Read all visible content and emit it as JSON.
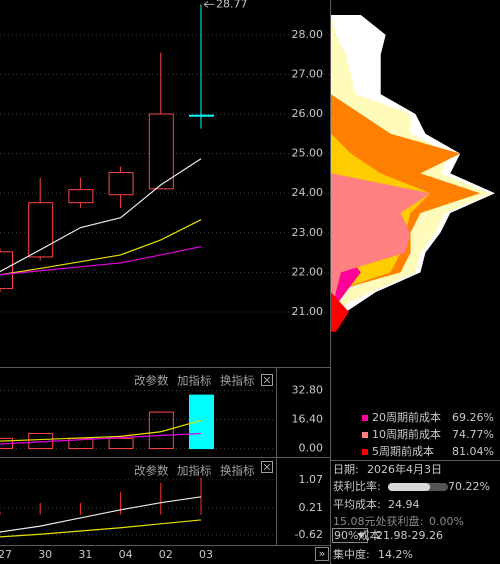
{
  "chart_data": [
    {
      "type": "candlestick",
      "categories": [
        "27",
        "30",
        "31",
        "04",
        "02",
        "03"
      ],
      "open": [
        21.59,
        22.39,
        23.76,
        23.96,
        24.11,
        25.97
      ],
      "high": [
        22.6,
        24.39,
        24.39,
        24.67,
        27.55,
        28.77
      ],
      "low": [
        21.5,
        22.3,
        23.63,
        23.63,
        24.11,
        25.63
      ],
      "close": [
        22.52,
        23.76,
        24.09,
        24.52,
        26.0,
        25.95
      ],
      "up_color": "#ff4545",
      "down_color": "#00ffff",
      "series": [
        {
          "color": "#e8e8e8",
          "values": [
            22.02,
            22.57,
            23.13,
            23.38,
            24.21,
            24.87
          ]
        },
        {
          "color": "#e8e000",
          "values": [
            21.94,
            22.1,
            22.27,
            22.44,
            22.82,
            23.33
          ]
        },
        {
          "color": "#e000e0",
          "values": [
            21.94,
            22.04,
            22.14,
            22.24,
            22.44,
            22.65
          ]
        }
      ],
      "ylim": [
        19.66,
        28.88
      ],
      "yticks": [
        {
          "value": 28,
          "label": "28.00"
        },
        {
          "value": 27,
          "label": "27.00"
        },
        {
          "value": 26,
          "label": "26.00"
        },
        {
          "value": 25,
          "label": "25.00"
        },
        {
          "value": 24,
          "label": "24.00"
        },
        {
          "value": 23,
          "label": "23.00"
        },
        {
          "value": 22,
          "label": "22.00"
        },
        {
          "value": 21,
          "label": "21.00"
        }
      ],
      "grid": true
    },
    {
      "type": "bar",
      "values": [
        5.8,
        8.5,
        5.8,
        5.8,
        20.6,
        30.2
      ],
      "bar_colors": [
        "#ff4545",
        "#ff4545",
        "#ff4545",
        "#ff4545",
        "#ff4545",
        "#00ffff"
      ],
      "filled": [
        false,
        false,
        false,
        false,
        false,
        true
      ],
      "series": [
        {
          "color": "#e8e000",
          "values": [
            4.2,
            5.1,
            6.0,
            6.9,
            9.5,
            15.9
          ]
        },
        {
          "color": "#e000e0",
          "values": [
            2.6,
            3.8,
            5.0,
            6.2,
            7.4,
            8.5
          ]
        }
      ],
      "buttons": [
        "改参数",
        "加指标",
        "换指标"
      ],
      "ylim": [
        -4.2,
        44.4
      ],
      "yticks": [
        {
          "value": 32.8,
          "label": "32.80"
        },
        {
          "value": 16.4,
          "label": "16.40"
        },
        {
          "value": 0,
          "label": "0.00"
        }
      ],
      "grid": true
    },
    {
      "type": "stick",
      "values": [
        0.1,
        0.36,
        0.36,
        0.7,
        0.98,
        1.13
      ],
      "color": "#ff3030",
      "series": [
        {
          "color": "#e8e8e8",
          "values": [
            -0.53,
            -0.35,
            -0.1,
            0.15,
            0.37,
            0.55
          ]
        },
        {
          "color": "#e8e000",
          "values": [
            -0.68,
            -0.6,
            -0.5,
            -0.4,
            -0.28,
            -0.16
          ]
        }
      ],
      "buttons": [
        "改参数",
        "加指标",
        "换指标"
      ],
      "ylim": [
        -0.93,
        1.68
      ],
      "yticks": [
        1.07,
        0.21,
        -0.62
      ],
      "grid": true
    },
    {
      "type": "profile",
      "levels": [
        28.5,
        28,
        27.5,
        27,
        26.5,
        26,
        25.5,
        25,
        24.5,
        24,
        23.5,
        23,
        22.5,
        22,
        21.5,
        21,
        20.5
      ],
      "xlim": [
        0,
        170
      ],
      "series": [
        {
          "color": "#ffffff",
          "values": [
            30,
            55,
            50,
            50,
            50,
            85,
            95,
            130,
            120,
            165,
            120,
            110,
            95,
            90,
            45,
            15,
            0
          ]
        },
        {
          "color": "#fffbbb",
          "values": [
            0,
            5,
            15,
            20,
            25,
            80,
            80,
            120,
            110,
            160,
            115,
            105,
            90,
            85,
            40,
            0,
            0
          ]
        },
        {
          "color": "#ff8000",
          "values": [
            0,
            0,
            0,
            0,
            0,
            30,
            60,
            130,
            90,
            150,
            90,
            80,
            80,
            70,
            0,
            0,
            0
          ]
        },
        {
          "color": "#ffcc00",
          "values": [
            0,
            0,
            0,
            0,
            0,
            0,
            0,
            20,
            50,
            100,
            80,
            75,
            70,
            60,
            0,
            0,
            0
          ]
        },
        {
          "name": "20周期前成本",
          "color": "#ff0099",
          "share": 69.26,
          "share_label": "69.26%",
          "values": [
            0,
            0,
            0,
            0,
            0,
            0,
            0,
            0,
            0,
            85,
            60,
            20,
            15,
            30,
            15,
            0,
            0
          ]
        },
        {
          "name": "10周期前成本",
          "color": "#ff8080",
          "share": 74.77,
          "share_label": "74.77%",
          "values": [
            0,
            0,
            0,
            0,
            0,
            0,
            0,
            0,
            0,
            100,
            70,
            80,
            75,
            10,
            5,
            0,
            0
          ]
        },
        {
          "name": "5周期前成本",
          "color": "#ff0000",
          "share": 81.04,
          "share_label": "81.04%",
          "values": [
            0,
            0,
            0,
            0,
            0,
            0,
            0,
            0,
            0,
            0,
            0,
            0,
            0,
            0,
            0,
            18,
            5
          ]
        }
      ]
    }
  ],
  "info": {
    "date_label": "日期:",
    "date": "2026年4月3日",
    "profit_label": "获利比率:",
    "profit_ratio": 70.22,
    "profit_text": "70.22%",
    "avg_label": "平均成本:",
    "avg_cost": 24.94,
    "price_label": "15.08元处获利盘:",
    "price_profit": "0.00%",
    "cost_select": "90%成本",
    "cost_range": "21.98-29.26",
    "conc_label": "集中度:",
    "concentration": "14.2%",
    "nav": "»"
  }
}
